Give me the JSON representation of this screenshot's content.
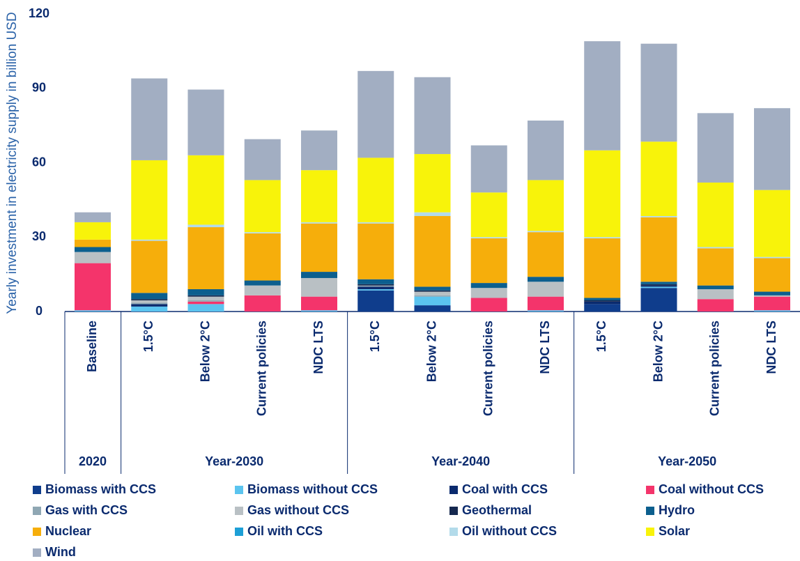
{
  "chart_data": {
    "type": "stacked-bar",
    "y_label": "Yearly investment in electricity supply in billion USD",
    "groups": [
      {
        "label": "2020",
        "categories": [
          "Baseline"
        ]
      },
      {
        "label": "Year-2030",
        "categories": [
          "1.5°C",
          "Below 2°C",
          "Current policies",
          "NDC LTS"
        ]
      },
      {
        "label": "Year-2040",
        "categories": [
          "1.5°C",
          "Below 2°C",
          "Current policies",
          "NDC LTS"
        ]
      },
      {
        "label": "Year-2050",
        "categories": [
          "1.5°C",
          "Below 2°C",
          "Current policies",
          "NDC LTS"
        ]
      }
    ],
    "ylim": [
      0,
      120
    ],
    "yticks": [
      0,
      30,
      60,
      90,
      120
    ],
    "grid": false,
    "series": [
      {
        "name": "Biomass with CCS",
        "color": "#0f3d8c",
        "values": [
          0,
          0,
          0,
          0,
          0,
          8.5,
          2.5,
          0,
          0,
          3,
          9.5,
          0,
          0
        ]
      },
      {
        "name": "Biomass without CCS",
        "color": "#5bc4ef",
        "values": [
          0.5,
          2,
          3,
          0,
          0.5,
          0.5,
          3.5,
          0,
          0.5,
          0,
          0.5,
          0,
          0.5
        ]
      },
      {
        "name": "Coal with CCS",
        "color": "#0a2a6e",
        "values": [
          0,
          1,
          0,
          0,
          0,
          1,
          0,
          0,
          0,
          1,
          0.5,
          0,
          0
        ]
      },
      {
        "name": "Coal without CCS",
        "color": "#f4346b",
        "values": [
          19,
          0,
          1,
          6.5,
          5.5,
          0,
          0,
          5.5,
          5.5,
          0,
          0,
          5,
          5.5
        ]
      },
      {
        "name": "Gas with CCS",
        "color": "#8fa7b3",
        "values": [
          0,
          0.5,
          0.5,
          0,
          0,
          0.5,
          0.5,
          0,
          0,
          0,
          0,
          0,
          0
        ]
      },
      {
        "name": "Gas without CCS",
        "color": "#b9c0c4",
        "values": [
          4.5,
          1,
          1.5,
          4,
          7.5,
          0,
          1.5,
          4,
          6,
          0,
          0,
          4,
          0.5
        ]
      },
      {
        "name": "Geothermal",
        "color": "#15284f",
        "values": [
          0,
          0.5,
          0.5,
          0,
          0,
          0.5,
          0.5,
          0,
          0,
          0.5,
          0.5,
          0,
          0
        ]
      },
      {
        "name": "Hydro",
        "color": "#0c5f8e",
        "values": [
          2,
          2.5,
          2.5,
          2,
          2.5,
          2,
          1.5,
          2,
          2,
          1,
          1,
          1.5,
          1.5
        ]
      },
      {
        "name": "Nuclear",
        "color": "#f6ae0b",
        "values": [
          3,
          21,
          25,
          19,
          19.5,
          22.5,
          28.5,
          18,
          18,
          24,
          26,
          15,
          13.5
        ]
      },
      {
        "name": "Oil with CCS",
        "color": "#1d9fd6",
        "values": [
          0,
          0,
          0,
          0,
          0,
          0,
          0,
          0,
          0,
          0,
          0,
          0,
          0
        ]
      },
      {
        "name": "Oil without CCS",
        "color": "#b3dbea",
        "values": [
          0,
          0.5,
          1,
          0.5,
          0.5,
          0.5,
          1.5,
          0.5,
          0.5,
          0.5,
          0.5,
          0.5,
          0.5
        ]
      },
      {
        "name": "Solar",
        "color": "#f8f30a",
        "values": [
          7,
          32,
          28,
          21,
          21,
          26,
          23.5,
          18,
          20.5,
          35,
          30,
          26,
          27
        ]
      },
      {
        "name": "Wind",
        "color": "#a2aec2",
        "values": [
          4,
          33,
          26.5,
          16.5,
          16,
          35,
          31,
          19,
          24,
          44,
          39.5,
          28,
          33
        ]
      }
    ]
  }
}
